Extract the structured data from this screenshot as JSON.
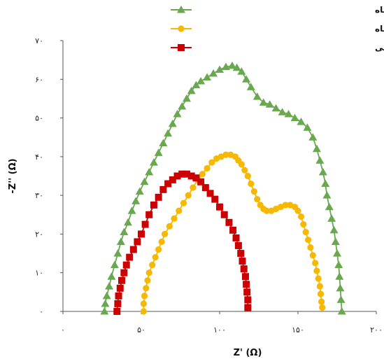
{
  "chart_data": {
    "type": "line",
    "xlabel": "Z' (Ω)",
    "ylabel": "-Z'' (Ω)",
    "xlim": [
      0,
      200
    ],
    "ylim": [
      0,
      70
    ],
    "xticks": [
      0,
      50,
      100,
      150,
      200
    ],
    "yticks": [
      0,
      10,
      20,
      30,
      40,
      50,
      60,
      70
    ],
    "xtick_labels": [
      "۰",
      "۵۰",
      "۱۰۰",
      "۱۵۰",
      "۲۰۰"
    ],
    "ytick_labels": [
      "۰",
      "۱۰",
      "۲۰",
      "۳۰",
      "۴۰",
      "۵۰",
      "۶۰",
      "۷۰"
    ],
    "grid": false,
    "legend_position": "top-right",
    "series": [
      {
        "name": "سلول حساس به رنگدانه پوست انار سیاه",
        "color": "#6aa84f",
        "marker": "triangle",
        "points": [
          [
            26.5,
            0
          ],
          [
            27,
            2
          ],
          [
            28,
            4
          ],
          [
            29.5,
            6.5
          ],
          [
            31,
            9
          ],
          [
            33,
            12
          ],
          [
            35,
            15
          ],
          [
            37,
            18
          ],
          [
            39,
            20.5
          ],
          [
            41.5,
            23
          ],
          [
            44,
            26
          ],
          [
            46.5,
            28.5
          ],
          [
            49,
            31
          ],
          [
            52,
            33.5
          ],
          [
            55,
            36
          ],
          [
            58,
            38.5
          ],
          [
            61,
            41
          ],
          [
            64,
            43.5
          ],
          [
            67,
            46
          ],
          [
            70,
            48.5
          ],
          [
            73,
            51
          ],
          [
            76,
            53
          ],
          [
            79,
            55
          ],
          [
            82,
            57
          ],
          [
            85,
            58.5
          ],
          [
            88,
            59.5
          ],
          [
            92,
            60.5
          ],
          [
            96,
            61.5
          ],
          [
            100,
            62.5
          ],
          [
            104,
            63.2
          ],
          [
            108,
            63.5
          ],
          [
            111,
            63
          ],
          [
            114,
            62
          ],
          [
            117,
            60
          ],
          [
            120,
            58
          ],
          [
            124,
            55.5
          ],
          [
            128,
            54
          ],
          [
            132,
            53.5
          ],
          [
            136,
            52.5
          ],
          [
            140,
            51.5
          ],
          [
            144,
            51
          ],
          [
            148,
            50
          ],
          [
            152,
            49
          ],
          [
            156,
            47.5
          ],
          [
            159.5,
            45
          ],
          [
            162,
            42
          ],
          [
            164,
            39
          ],
          [
            166,
            36
          ],
          [
            167.5,
            33
          ],
          [
            168.5,
            30
          ],
          [
            170,
            27
          ],
          [
            171.5,
            24
          ],
          [
            173,
            21
          ],
          [
            174,
            18
          ],
          [
            175,
            15
          ],
          [
            176,
            12
          ],
          [
            176.5,
            9
          ],
          [
            177,
            6
          ],
          [
            177.5,
            3
          ],
          [
            178,
            0
          ]
        ]
      },
      {
        "name": "سلول حساس به رنگدانه انگور سیاه",
        "color": "#f6b800",
        "marker": "circle",
        "points": [
          [
            51.5,
            0
          ],
          [
            51.5,
            2
          ],
          [
            52,
            4
          ],
          [
            53,
            6
          ],
          [
            54,
            8
          ],
          [
            55,
            10
          ],
          [
            57,
            12
          ],
          [
            59,
            14
          ],
          [
            61,
            16
          ],
          [
            63,
            18
          ],
          [
            65,
            20
          ],
          [
            68,
            22
          ],
          [
            71,
            24
          ],
          [
            74,
            26
          ],
          [
            77,
            28
          ],
          [
            80,
            30
          ],
          [
            83,
            32
          ],
          [
            86,
            34
          ],
          [
            89,
            35.5
          ],
          [
            92,
            37
          ],
          [
            95,
            38.5
          ],
          [
            98,
            39.5
          ],
          [
            101,
            40
          ],
          [
            104,
            40.5
          ],
          [
            107,
            40.5
          ],
          [
            110,
            40
          ],
          [
            112,
            39
          ],
          [
            114,
            38
          ],
          [
            116,
            36.5
          ],
          [
            118,
            35
          ],
          [
            120,
            33
          ],
          [
            122,
            31
          ],
          [
            124,
            29
          ],
          [
            126,
            27.5
          ],
          [
            128,
            26.5
          ],
          [
            130,
            26
          ],
          [
            133,
            26
          ],
          [
            136,
            26.5
          ],
          [
            139,
            27
          ],
          [
            142,
            27.5
          ],
          [
            145,
            27.5
          ],
          [
            148,
            27
          ],
          [
            150,
            26
          ],
          [
            152,
            24.5
          ],
          [
            153.5,
            22.5
          ],
          [
            155,
            20.5
          ],
          [
            156.5,
            18.5
          ],
          [
            158,
            16.5
          ],
          [
            159.5,
            14.5
          ],
          [
            161,
            12.5
          ],
          [
            162,
            10.5
          ],
          [
            163,
            8.5
          ],
          [
            164,
            6.5
          ],
          [
            164.5,
            4.5
          ],
          [
            165,
            2.5
          ],
          [
            165.5,
            1
          ]
        ]
      },
      {
        "name": "سلول حساس به رنگدانه گل زنبق وحشی",
        "color": "#cc0000",
        "marker": "square",
        "points": [
          [
            34.5,
            0
          ],
          [
            35,
            2
          ],
          [
            35.5,
            4
          ],
          [
            36.5,
            6
          ],
          [
            37.5,
            8
          ],
          [
            39,
            10
          ],
          [
            40.5,
            12
          ],
          [
            42.5,
            14
          ],
          [
            45,
            16
          ],
          [
            47.5,
            18
          ],
          [
            50,
            20
          ],
          [
            52.5,
            22.5
          ],
          [
            55,
            25
          ],
          [
            58,
            27.5
          ],
          [
            61,
            29.5
          ],
          [
            64,
            31.5
          ],
          [
            67,
            33
          ],
          [
            70,
            34
          ],
          [
            73,
            35
          ],
          [
            76,
            35.5
          ],
          [
            79,
            35.5
          ],
          [
            82,
            35
          ],
          [
            85,
            34.5
          ],
          [
            88,
            33.5
          ],
          [
            91,
            32
          ],
          [
            94,
            30.5
          ],
          [
            97,
            29
          ],
          [
            100,
            27
          ],
          [
            103,
            25
          ],
          [
            106,
            23
          ],
          [
            108.5,
            21
          ],
          [
            110.5,
            19
          ],
          [
            112,
            17
          ],
          [
            113.5,
            15
          ],
          [
            114.5,
            13
          ],
          [
            115.5,
            11
          ],
          [
            116.5,
            9
          ],
          [
            117,
            7
          ],
          [
            117.5,
            5
          ],
          [
            118,
            3
          ],
          [
            118,
            1
          ]
        ]
      }
    ]
  }
}
